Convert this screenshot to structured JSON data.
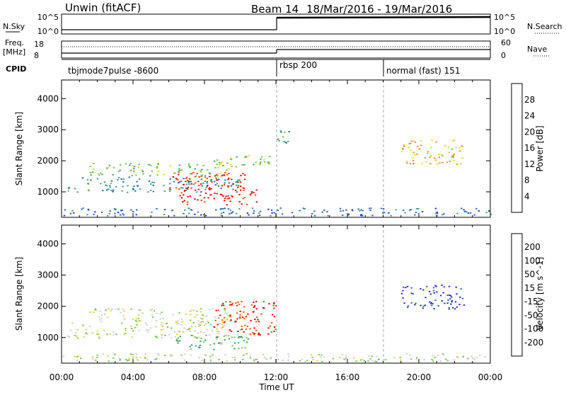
{
  "header": {
    "station": "Unwin (fitACF)",
    "beam_label": "Beam 14",
    "date_range": "18/Mar/2016 - 19/Mar/2016"
  },
  "nsky_panel": {
    "left_label": "N.Sky",
    "right_label": "N.Search",
    "left_ticks": [
      "10^5",
      "10^0"
    ],
    "right_ticks": [
      "10^5",
      "10^0"
    ]
  },
  "freq_panel": {
    "left_label_1": "Freq.",
    "left_label_2": "[MHz]",
    "right_label": "Nave",
    "left_ticks": [
      "18",
      "8"
    ],
    "right_ticks": [
      "60",
      "0"
    ]
  },
  "cpid_panel": {
    "label": "CPID",
    "modes": [
      "tbjmode7pulse -8600",
      "rbsp 200",
      "normal (fast) 151"
    ],
    "boundaries_hours": [
      12,
      18
    ]
  },
  "power_panel": {
    "ylabel": "Slant Range [km]",
    "colorbar_label": "Power [dB]",
    "colorbar_ticks": [
      "4",
      "8",
      "12",
      "16",
      "20",
      "24",
      "28"
    ],
    "colorbar_colors": [
      "#1030e0",
      "#2060b0",
      "#3a9a80",
      "#6cc048",
      "#f0d020",
      "#f08c10",
      "#ff4000",
      "#e00000"
    ]
  },
  "velocity_panel": {
    "ylabel": "Slant Range [km]",
    "colorbar_label": "Velocity [m s^-1]",
    "colorbar_ticks": [
      "200",
      "100",
      "50",
      "15",
      "-15",
      "-50",
      "-100",
      "-200"
    ],
    "colorbar_colors": [
      "#1a28c8",
      "#2a60b0",
      "#3a9a70",
      "#70c848",
      "#cccccc",
      "#f0c840",
      "#f09020",
      "#f05000",
      "#e00000"
    ]
  },
  "x_axis": {
    "label": "Time UT",
    "ticks": [
      "00:00",
      "04:00",
      "08:00",
      "12:00",
      "16:00",
      "20:00",
      "00:00"
    ]
  },
  "chart_data": [
    {
      "type": "heatmap",
      "title": "Power [dB]",
      "x": [
        0,
        24
      ],
      "xlabel": "Time UT",
      "ylabel": "Slant Range [km]",
      "ylim": [
        180,
        4600
      ],
      "yticks": [
        1000,
        2000,
        3000,
        4000
      ],
      "value_range": [
        0,
        30
      ],
      "regions": [
        {
          "t0": 0.3,
          "t1": 10.0,
          "r0": 1000,
          "r1": 1500,
          "value": 8
        },
        {
          "t0": 1.5,
          "t1": 9.5,
          "r0": 1500,
          "r1": 1950,
          "value": 13
        },
        {
          "t0": 6.0,
          "t1": 10.5,
          "r0": 1100,
          "r1": 1700,
          "value": 26
        },
        {
          "t0": 6.5,
          "t1": 11.0,
          "r0": 600,
          "r1": 1100,
          "value": 28
        },
        {
          "t0": 8.5,
          "t1": 11.8,
          "r0": 1800,
          "r1": 2200,
          "value": 14
        },
        {
          "t0": 12.0,
          "t1": 12.8,
          "r0": 2400,
          "r1": 3000,
          "value": 10
        },
        {
          "t0": 19.0,
          "t1": 22.5,
          "r0": 1900,
          "r1": 2700,
          "value": 18
        },
        {
          "t0": 0.0,
          "t1": 24.0,
          "r0": 250,
          "r1": 500,
          "value": 6
        }
      ]
    },
    {
      "type": "heatmap",
      "title": "Velocity [m s^-1]",
      "x": [
        0,
        24
      ],
      "xlabel": "Time UT",
      "ylabel": "Slant Range [km]",
      "ylim": [
        180,
        4600
      ],
      "yticks": [
        1000,
        2000,
        3000,
        4000
      ],
      "value_range": [
        -250,
        250
      ],
      "regions": [
        {
          "t0": 0.3,
          "t1": 10.0,
          "r0": 1000,
          "r1": 1500,
          "value": 0
        },
        {
          "t0": 1.5,
          "t1": 9.5,
          "r0": 1500,
          "r1": 1950,
          "value": 0
        },
        {
          "t0": 6.0,
          "t1": 10.5,
          "r0": 600,
          "r1": 1100,
          "value": -80
        },
        {
          "t0": 8.5,
          "t1": 12.0,
          "r0": 1100,
          "r1": 2200,
          "value": 200
        },
        {
          "t0": 19.0,
          "t1": 22.5,
          "r0": 1900,
          "r1": 2700,
          "value": -200
        },
        {
          "t0": 0.0,
          "t1": 24.0,
          "r0": 250,
          "r1": 500,
          "value": -20
        }
      ]
    },
    {
      "type": "line",
      "title": "N.Sky",
      "x": [
        0,
        12,
        12,
        24
      ],
      "y": [
        0,
        0,
        100000,
        100000
      ],
      "ylim": [
        1,
        100000
      ]
    },
    {
      "type": "line",
      "title": "Freq. [MHz]",
      "x": [
        0,
        12,
        12,
        24
      ],
      "y": [
        9.5,
        9.5,
        11.0,
        11.0
      ],
      "ylim": [
        8,
        18
      ]
    }
  ]
}
